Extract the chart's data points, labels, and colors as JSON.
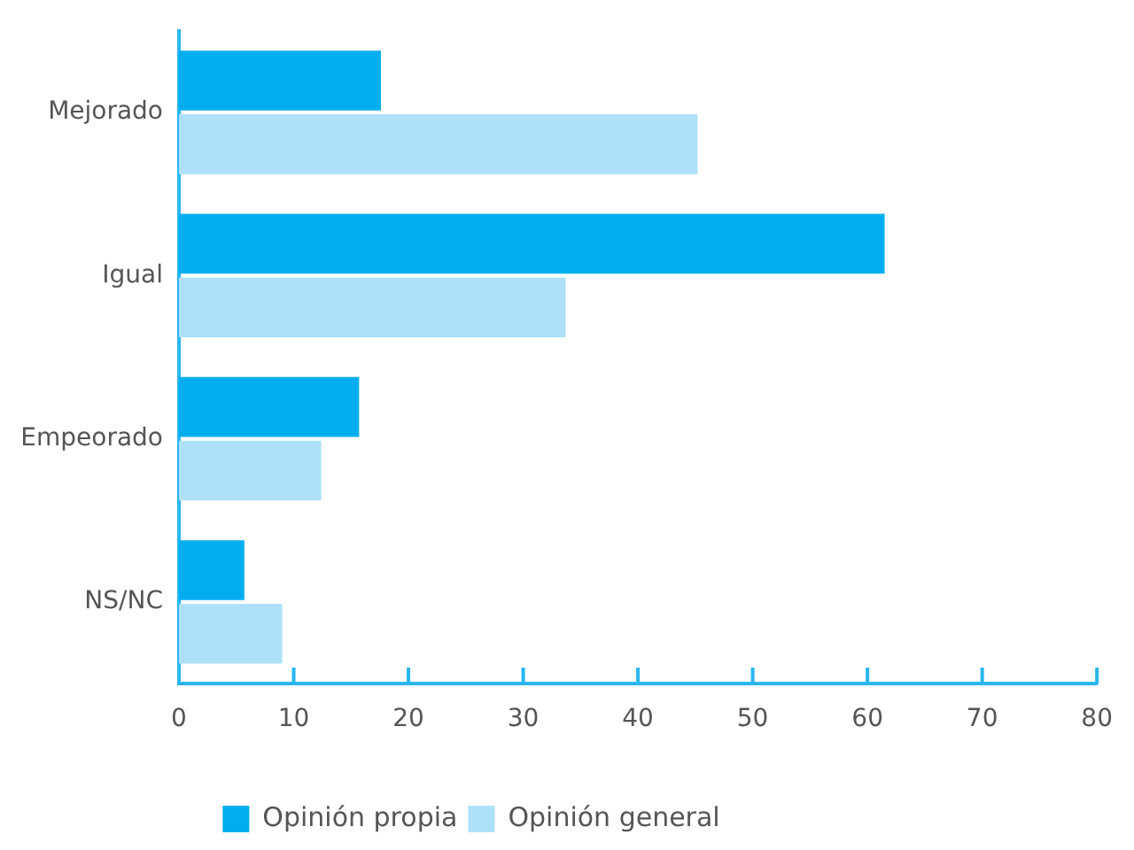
{
  "chart_data": {
    "type": "bar",
    "orientation": "horizontal",
    "categories": [
      "Mejorado",
      "Igual",
      "Empeorado",
      "NS/NC"
    ],
    "series": [
      {
        "name": "Opinión propia",
        "color": "#00aeef",
        "values": [
          17.6,
          61.5,
          15.7,
          5.7
        ]
      },
      {
        "name": "Opinión general",
        "color": "#aee0fa",
        "values": [
          45.2,
          33.7,
          12.4,
          9.0
        ]
      }
    ],
    "xlim": [
      0,
      80
    ],
    "xticks": [
      0,
      10,
      20,
      30,
      40,
      50,
      60,
      70,
      80
    ],
    "grid": false,
    "legend": "bottom"
  }
}
